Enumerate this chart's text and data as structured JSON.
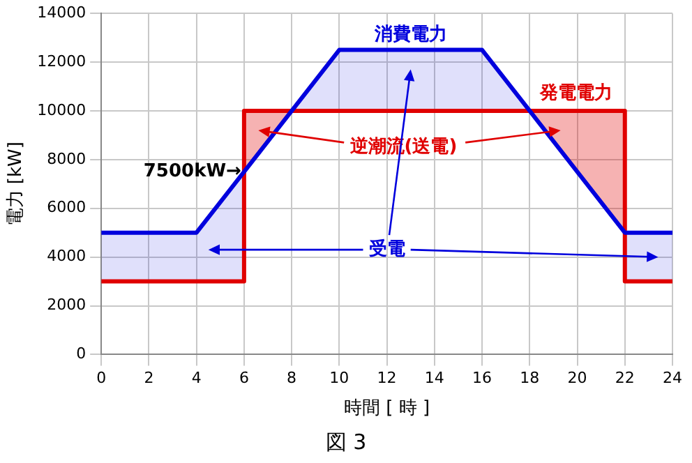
{
  "chart_data": {
    "type": "line",
    "xlabel": "時間 [ 時 ]",
    "ylabel": "電力 [kW]",
    "xlim": [
      0,
      24
    ],
    "xticks": [
      0,
      2,
      4,
      6,
      8,
      10,
      12,
      14,
      16,
      18,
      20,
      22,
      24
    ],
    "ylim": [
      0,
      14000
    ],
    "yticks": [
      0,
      2000,
      4000,
      6000,
      8000,
      10000,
      12000,
      14000
    ],
    "grid": true,
    "legend": false,
    "marker": "none",
    "line_style": "solid",
    "series": [
      {
        "name": "消費電力",
        "color": "#0000dd",
        "x": [
          0,
          4,
          6,
          6,
          10,
          16,
          22,
          22,
          24
        ],
        "values": [
          5000,
          5000,
          7500,
          7500,
          12500,
          12500,
          5000,
          5000,
          5000
        ],
        "lower": [
          3000,
          3000,
          3000,
          10000,
          10000,
          10000,
          10000,
          3000,
          3000
        ],
        "upper": [
          5000,
          5000,
          7500,
          7500,
          12500,
          12500,
          5000,
          5000,
          5000
        ]
      },
      {
        "name": "発電電力",
        "type": "step",
        "color": "#e00000",
        "x": [
          0,
          6,
          22,
          24
        ],
        "values": [
          3000,
          10000,
          3000,
          3000
        ]
      }
    ],
    "annotations": [
      {
        "text": "7500kW→",
        "x": 6,
        "y": 7500
      },
      "逆潮流(送電)",
      "受電",
      "図 3"
    ]
  }
}
